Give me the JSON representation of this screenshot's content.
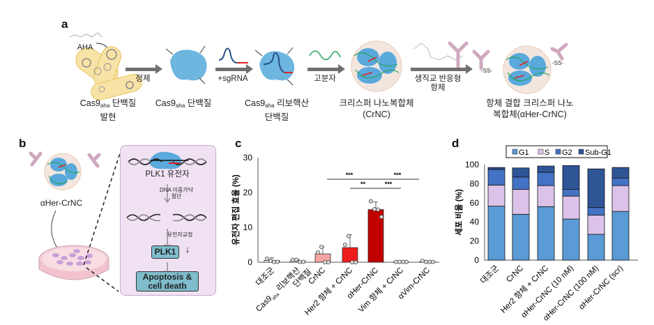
{
  "panel_labels": {
    "a": "a",
    "b": "b",
    "c": "c",
    "d": "d"
  },
  "panel_a": {
    "aha_label": "AHA",
    "step1_caption": {
      "pre": "Cas9",
      "sub": "aha",
      "post": " 단백질",
      "line2": "발현"
    },
    "arrow1_label": "정제",
    "step2_caption": {
      "pre": "Cas9",
      "sub": "aha",
      "post": " 단백질"
    },
    "arrow2_label": "+sgRNA",
    "step3_caption": {
      "pre": "Cas9",
      "sub": "aha",
      "post": " 리보핵산",
      "line2": "단백질"
    },
    "arrow3_label": "고분자",
    "step4_caption": {
      "line1": "크리스퍼 나노복합체",
      "line2": "(CrNC)"
    },
    "arrow4_label": {
      "line1": "생직교 반응형",
      "line2": "항체"
    },
    "step5_caption": {
      "line1": "항체 결합 크리스퍼 나노",
      "line2": "복합체(αHer-CrNC)"
    },
    "azide_label": "N3",
    "disulfide_label": "-SS-"
  },
  "panel_b": {
    "particle_label": "αHer-CrNC",
    "gene_label": "PLK1 유전자",
    "step1": {
      "line1": "DNA 이중가닥",
      "line2": "절단"
    },
    "step2": "유전자교정",
    "plk1_box": "PLK1",
    "down_arrow": "↓",
    "outcome": {
      "line1": "Apoptosis &",
      "line2": "cell death"
    }
  },
  "chart_data": [
    {
      "type": "bar",
      "title": "",
      "ylabel": "유전자 편집 효율 (%)",
      "xlabel": "",
      "ylim": [
        0,
        30
      ],
      "yticks": [
        "0",
        "10",
        "20",
        "30"
      ],
      "categories": [
        "대조군",
        "Cas9aha 리보핵산 단백질",
        "CrNC",
        "Her2 항체 + CrNC",
        "αHer-CrNC",
        "Vim 항체 + CrNC",
        "αVim-CrNC"
      ],
      "category_labels": [
        {
          "line1": "대조군"
        },
        {
          "line1": "Cas9",
          "sub": "aha",
          "post": " 리보핵산",
          "line2": "단백질"
        },
        {
          "line1": "CrNC"
        },
        {
          "line1": "Her2 항체 + CrNC"
        },
        {
          "line1": "αHer-CrNC"
        },
        {
          "line1": "Vim 항체 + CrNC"
        },
        {
          "line1": "αVim-CrNC"
        }
      ],
      "values": [
        0.5,
        0.4,
        2.4,
        4.2,
        15.1,
        0.1,
        0.2
      ],
      "errors": [
        0.8,
        0.3,
        2.0,
        3.7,
        2.2,
        0.0,
        0.0
      ],
      "points": [
        [
          1.0,
          0.4,
          0.1,
          0.1
        ],
        [
          0.7,
          0.7,
          0.1,
          0.1
        ],
        [
          2.8,
          4.4,
          0,
          0
        ],
        [
          5.0,
          7.5,
          0,
          0
        ],
        [
          17.5,
          15.2,
          15.1,
          13.0
        ],
        [
          0.1,
          0.1,
          0.1,
          0.1
        ],
        [
          0.4,
          0.1,
          0.1,
          0.1
        ]
      ],
      "colors": [
        "#ffffff",
        "#ffffff",
        "#f4a3a3",
        "#ee1c1c",
        "#c00000",
        "#ffffff",
        "#ffffff"
      ],
      "significance": [
        {
          "from": 2,
          "to": 4,
          "y": 23.8,
          "label": "***"
        },
        {
          "from": 4,
          "to": 6,
          "y": 23.8,
          "label": "***"
        },
        {
          "from": 3,
          "to": 4,
          "y": 21.2,
          "label": "**"
        },
        {
          "from": 4,
          "to": 5,
          "y": 21.2,
          "label": "***"
        }
      ]
    },
    {
      "type": "stacked-bar",
      "title": "",
      "ylabel": "세포 비율 (%)",
      "xlabel": "",
      "ylim": [
        0,
        100
      ],
      "yticks": [
        "0",
        "20",
        "40",
        "60",
        "80",
        "100"
      ],
      "legend_position": "top",
      "categories": [
        "대조군",
        "CrNC",
        "Her2 항체 + CrNC",
        "αHer-CrNC (10 nM)",
        "αHer-CrNC (100 nM)",
        "αHer-CrNC (scr)"
      ],
      "series": [
        {
          "name": "G1",
          "color": "#5b9bd5",
          "values": [
            56.5,
            48,
            56,
            43,
            27,
            51
          ]
        },
        {
          "name": "S",
          "color": "#dcc2e8",
          "values": [
            22,
            26,
            22,
            24,
            20,
            27
          ]
        },
        {
          "name": "G2",
          "color": "#4472c4",
          "values": [
            16.5,
            13,
            14,
            7,
            8,
            8
          ]
        },
        {
          "name": "Sub-G1",
          "color": "#2f5597",
          "values": [
            2,
            9.5,
            6.5,
            25,
            40.5,
            11
          ]
        }
      ]
    }
  ]
}
